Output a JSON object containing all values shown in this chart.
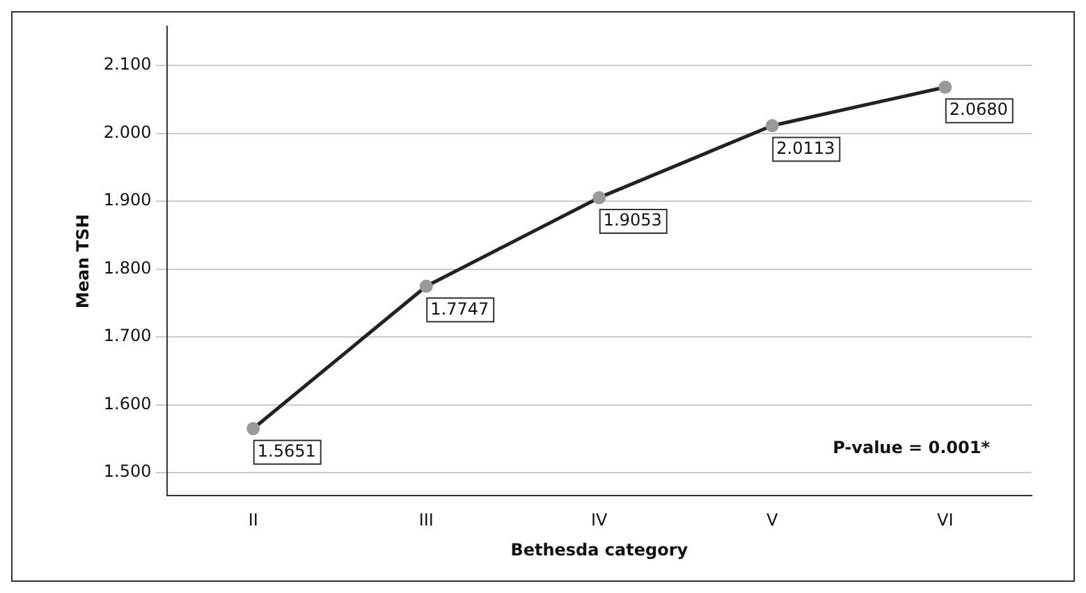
{
  "chart_data": {
    "type": "line",
    "xlabel": "Bethesda category",
    "ylabel": "Mean TSH",
    "categories": [
      "II",
      "III",
      "IV",
      "V",
      "VI"
    ],
    "series": [
      {
        "color": "#222222",
        "values": [
          1.5651,
          1.7747,
          1.9053,
          2.0113,
          2.068
        ],
        "value_labels": [
          "1.5651",
          "1.7747",
          "1.9053",
          "2.0113",
          "2.0680"
        ]
      }
    ],
    "ylim": [
      1.466,
      2.157
    ],
    "yticks": [
      {
        "value": 1.5,
        "label": "1.500"
      },
      {
        "value": 1.6,
        "label": "1.600"
      },
      {
        "value": 1.7,
        "label": "1.700"
      },
      {
        "value": 1.8,
        "label": "1.800"
      },
      {
        "value": 1.9,
        "label": "1.900"
      },
      {
        "value": 2.0,
        "label": "2.000"
      },
      {
        "value": 2.1,
        "label": "2.100"
      }
    ],
    "grid": "y",
    "marker": "circle",
    "line_style": "solid",
    "legend": false,
    "annotations": [
      "P-value = 0.001*"
    ]
  }
}
